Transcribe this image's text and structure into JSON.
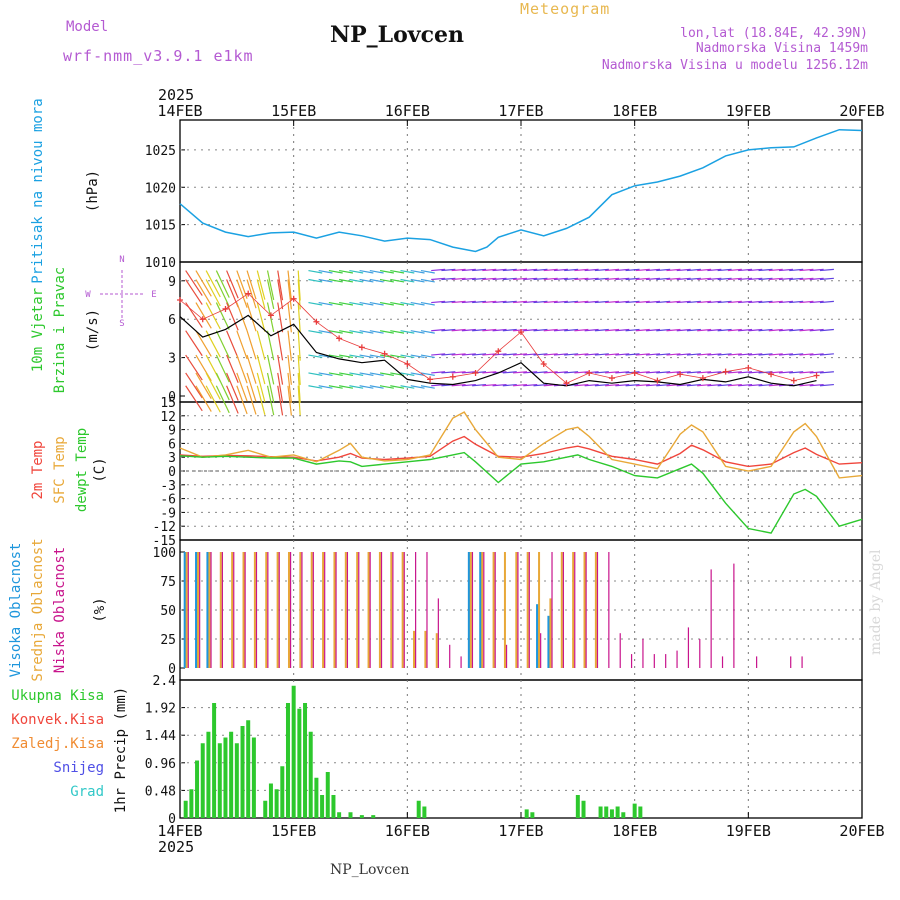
{
  "header": {
    "model_label": "Model",
    "model_name": "wrf-nmm_v3.9.1 e1km",
    "station_title": "NP_Lovcen",
    "meteogram_label": "Meteogram",
    "lonlat": "lon,lat (18.84E, 42.39N)",
    "altitude": "Nadmorska Visina 1459m",
    "model_altitude": "Nadmorska Visina u modelu 1256.12m"
  },
  "footer": {
    "station": "NP_Lovcen",
    "credit": "made by Angel"
  },
  "colors": {
    "pressure": "#1ba1e2",
    "temp2m": "#f0463c",
    "sfc": "#e8a838",
    "dew": "#2dc82d",
    "low_cloud": "#c8148c",
    "mid_cloud": "#e8a838",
    "high_cloud": "#1e96dc",
    "total_precip": "#2dc82d",
    "conv_precip": "#f0463c",
    "frz_precip": "#f08c32",
    "snow": "#5050e6",
    "graupel": "#32c8c8",
    "wind_gust": "#e83c3c",
    "wind_speed": "#000000",
    "purple_text": "#b45ad2"
  },
  "chart_data": [
    {
      "type": "line",
      "panel": "pressure",
      "title": "",
      "x_ticks": [
        "14FEB",
        "15FEB",
        "16FEB",
        "17FEB",
        "18FEB",
        "19FEB",
        "20FEB"
      ],
      "x_year": "2025",
      "ylabel": [
        "Pritisak na nivou mora",
        "(hPa)"
      ],
      "ylim": [
        1010,
        1029
      ],
      "y_ticks": [
        1010,
        1015,
        1020,
        1025
      ],
      "x": [
        0,
        0.2,
        0.4,
        0.6,
        0.8,
        1.0,
        1.2,
        1.4,
        1.6,
        1.8,
        2.0,
        2.2,
        2.4,
        2.6,
        2.7,
        2.8,
        3.0,
        3.2,
        3.4,
        3.6,
        3.8,
        4.0,
        4.2,
        4.4,
        4.6,
        4.8,
        5.0,
        5.2,
        5.4,
        5.6,
        5.8,
        6.0
      ],
      "series": [
        {
          "values": [
            1017.8,
            1015.2,
            1014.0,
            1013.4,
            1013.9,
            1014.0,
            1013.2,
            1014.0,
            1013.5,
            1012.8,
            1013.2,
            1013.0,
            1012.0,
            1011.4,
            1012.0,
            1013.3,
            1014.3,
            1013.5,
            1014.5,
            1016.0,
            1019.0,
            1020.2,
            1020.7,
            1021.5,
            1022.6,
            1024.2,
            1025.0,
            1025.3,
            1025.4,
            1026.6,
            1027.7,
            1027.6
          ]
        }
      ]
    },
    {
      "type": "line",
      "panel": "wind",
      "title": "",
      "ylabel": [
        "10m Vjetar",
        "Brzina i Pravac",
        "(m/s)"
      ],
      "compass": [
        "N",
        "W",
        "E",
        "S"
      ],
      "ylim": [
        0,
        10
      ],
      "y_ticks": [
        0,
        3,
        6,
        9
      ],
      "x": [
        0,
        0.2,
        0.4,
        0.6,
        0.8,
        1.0,
        1.2,
        1.4,
        1.6,
        1.8,
        2.0,
        2.2,
        2.4,
        2.6,
        2.8,
        3.0,
        3.2,
        3.4,
        3.6,
        3.8,
        4.0,
        4.2,
        4.4,
        4.6,
        4.8,
        5.0,
        5.2,
        5.4,
        5.6
      ],
      "series": [
        {
          "values": [
            6.2,
            4.6,
            5.2,
            6.3,
            4.7,
            5.6,
            3.4,
            2.9,
            2.6,
            2.8,
            1.3,
            1.0,
            0.9,
            1.2,
            1.8,
            2.6,
            1.0,
            0.8,
            1.2,
            1.0,
            1.2,
            1.1,
            0.9,
            1.3,
            1.1,
            1.5,
            1.0,
            0.8,
            1.2
          ]
        },
        {
          "values": [
            7.5,
            6.0,
            6.8,
            8.0,
            6.3,
            7.6,
            5.8,
            4.5,
            3.8,
            3.3,
            2.5,
            1.3,
            1.5,
            1.8,
            3.5,
            5.0,
            2.5,
            1.0,
            1.8,
            1.4,
            1.8,
            1.2,
            1.7,
            1.4,
            1.9,
            2.2,
            1.7,
            1.2,
            1.6
          ]
        }
      ]
    },
    {
      "type": "line",
      "panel": "temperature",
      "title": "",
      "ylabel": [
        "2m Temp",
        "SFC Temp",
        "dewpt Temp",
        "(C)"
      ],
      "ylim": [
        -15,
        15
      ],
      "y_ticks": [
        -15,
        -12,
        -9,
        -6,
        -3,
        0,
        3,
        6,
        9,
        12,
        15
      ],
      "x": [
        0,
        0.2,
        0.4,
        0.6,
        0.8,
        1.0,
        1.2,
        1.4,
        1.5,
        1.6,
        1.8,
        2.0,
        2.2,
        2.4,
        2.5,
        2.6,
        2.8,
        3.0,
        3.2,
        3.4,
        3.5,
        3.6,
        3.8,
        4.0,
        4.2,
        4.4,
        4.5,
        4.6,
        4.8,
        5.0,
        5.2,
        5.4,
        5.5,
        5.6,
        5.8,
        6.0
      ],
      "series": [
        {
          "name": "2m Temp",
          "values": [
            3.5,
            3.2,
            3.4,
            3.3,
            3.1,
            3.0,
            2.2,
            3.0,
            3.8,
            2.8,
            2.5,
            2.8,
            3.2,
            6.5,
            7.5,
            5.8,
            3.2,
            3.0,
            3.8,
            5.0,
            5.4,
            4.8,
            3.2,
            2.5,
            1.5,
            3.8,
            5.6,
            4.6,
            2.0,
            1.0,
            1.5,
            4.0,
            5.0,
            3.6,
            1.5,
            1.8
          ]
        },
        {
          "name": "SFC Temp",
          "values": [
            5.0,
            3.0,
            3.5,
            4.5,
            3.0,
            3.5,
            2.0,
            4.5,
            6.0,
            3.0,
            2.2,
            2.5,
            3.5,
            11.5,
            12.8,
            9.0,
            3.0,
            2.5,
            6.0,
            9.0,
            9.5,
            7.5,
            2.5,
            1.5,
            0.5,
            8.0,
            10.0,
            8.5,
            1.0,
            0.0,
            1.0,
            8.5,
            10.3,
            7.5,
            -1.5,
            -1.0
          ]
        },
        {
          "name": "dewpt Temp",
          "values": [
            3.3,
            3.0,
            3.2,
            3.0,
            2.8,
            2.8,
            1.5,
            2.2,
            2.0,
            1.0,
            1.5,
            2.0,
            2.5,
            3.5,
            4.0,
            2.0,
            -2.5,
            1.5,
            2.0,
            3.0,
            3.5,
            2.5,
            1.0,
            -1.0,
            -1.5,
            0.5,
            1.5,
            -0.5,
            -7.0,
            -12.5,
            -13.5,
            -5.0,
            -4.0,
            -5.5,
            -12.0,
            -10.5
          ]
        }
      ]
    },
    {
      "type": "bar",
      "panel": "cloud",
      "title": "",
      "ylabel": [
        "Visoka Oblacnost",
        "Srednja Oblacnost",
        "Niska Oblacnost",
        "(%)"
      ],
      "ylim": [
        0,
        100
      ],
      "y_ticks": [
        0,
        25,
        50,
        75,
        100
      ],
      "x": [
        0.05,
        0.15,
        0.25,
        0.35,
        0.45,
        0.55,
        0.65,
        0.75,
        0.85,
        0.95,
        1.05,
        1.15,
        1.25,
        1.35,
        1.45,
        1.55,
        1.65,
        1.75,
        1.85,
        1.95,
        2.05,
        2.15,
        2.25,
        2.35,
        2.45,
        2.55,
        2.65,
        2.75,
        2.85,
        2.95,
        3.05,
        3.15,
        3.25,
        3.35,
        3.45,
        3.55,
        3.65,
        3.75,
        3.85,
        3.95,
        4.05,
        4.15,
        4.25,
        4.35,
        4.45,
        4.55,
        4.65,
        4.75,
        4.85,
        4.95,
        5.05,
        5.15,
        5.25,
        5.35,
        5.45,
        5.55,
        5.65,
        5.75,
        5.85,
        5.95
      ],
      "series": [
        {
          "name": "Visoka Oblacnost",
          "values": [
            100,
            100,
            100,
            0,
            0,
            0,
            0,
            0,
            0,
            0,
            0,
            0,
            0,
            0,
            0,
            0,
            0,
            0,
            0,
            0,
            0,
            0,
            0,
            0,
            0,
            100,
            100,
            0,
            0,
            0,
            0,
            55,
            45,
            0,
            0,
            0,
            0,
            0,
            0,
            0,
            0,
            0,
            0,
            0,
            0,
            0,
            0,
            0,
            0,
            0,
            0,
            0,
            0,
            0,
            0,
            0,
            0,
            0,
            0,
            0
          ]
        },
        {
          "name": "Srednja Oblacnost",
          "values": [
            100,
            100,
            100,
            100,
            100,
            100,
            100,
            100,
            100,
            100,
            100,
            100,
            100,
            100,
            100,
            100,
            100,
            100,
            100,
            100,
            32,
            32,
            30,
            0,
            0,
            100,
            100,
            100,
            100,
            100,
            100,
            100,
            60,
            100,
            100,
            100,
            100,
            0,
            0,
            0,
            0,
            0,
            0,
            0,
            0,
            0,
            0,
            0,
            0,
            0,
            0,
            0,
            0,
            0,
            0,
            0,
            0,
            0,
            0,
            0
          ]
        },
        {
          "name": "Niska Oblacnost",
          "values": [
            100,
            100,
            100,
            100,
            100,
            100,
            100,
            100,
            100,
            100,
            100,
            100,
            100,
            100,
            100,
            100,
            100,
            100,
            100,
            100,
            100,
            100,
            60,
            20,
            10,
            100,
            100,
            100,
            20,
            100,
            100,
            30,
            100,
            100,
            100,
            100,
            100,
            100,
            30,
            12,
            25,
            12,
            12,
            15,
            35,
            25,
            85,
            10,
            90,
            0,
            10,
            0,
            0,
            10,
            10,
            0,
            0,
            0,
            0,
            0
          ]
        }
      ]
    },
    {
      "type": "bar",
      "panel": "precip",
      "title": "",
      "ylabel": [
        "1hr Precip (mm)"
      ],
      "legend": [
        "Ukupna Kisa",
        "Konvek.Kisa",
        "Zaledj.Kisa",
        "Snijeg",
        "Grad"
      ],
      "ylim": [
        0,
        2.4
      ],
      "y_ticks": [
        0,
        0.48,
        0.96,
        1.44,
        1.92,
        2.4
      ],
      "x": [
        0.05,
        0.1,
        0.15,
        0.2,
        0.25,
        0.3,
        0.35,
        0.4,
        0.45,
        0.5,
        0.55,
        0.6,
        0.65,
        0.75,
        0.8,
        0.85,
        0.9,
        0.95,
        1.0,
        1.05,
        1.1,
        1.15,
        1.2,
        1.25,
        1.3,
        1.35,
        1.4,
        1.5,
        1.6,
        1.7,
        2.1,
        2.15,
        3.05,
        3.1,
        3.5,
        3.55,
        3.7,
        3.75,
        3.8,
        3.85,
        3.9,
        4.0,
        4.05
      ],
      "series": [
        {
          "name": "Ukupna Kisa",
          "values": [
            0.3,
            0.5,
            1.0,
            1.3,
            1.5,
            2.0,
            1.3,
            1.4,
            1.5,
            1.3,
            1.6,
            1.7,
            1.4,
            0.3,
            0.6,
            0.5,
            0.9,
            2.0,
            2.3,
            1.9,
            2.0,
            1.5,
            0.7,
            0.4,
            0.8,
            0.4,
            0.1,
            0.1,
            0.05,
            0.05,
            0.3,
            0.2,
            0.15,
            0.1,
            0.4,
            0.3,
            0.2,
            0.2,
            0.15,
            0.2,
            0.1,
            0.25,
            0.2
          ]
        }
      ]
    }
  ]
}
